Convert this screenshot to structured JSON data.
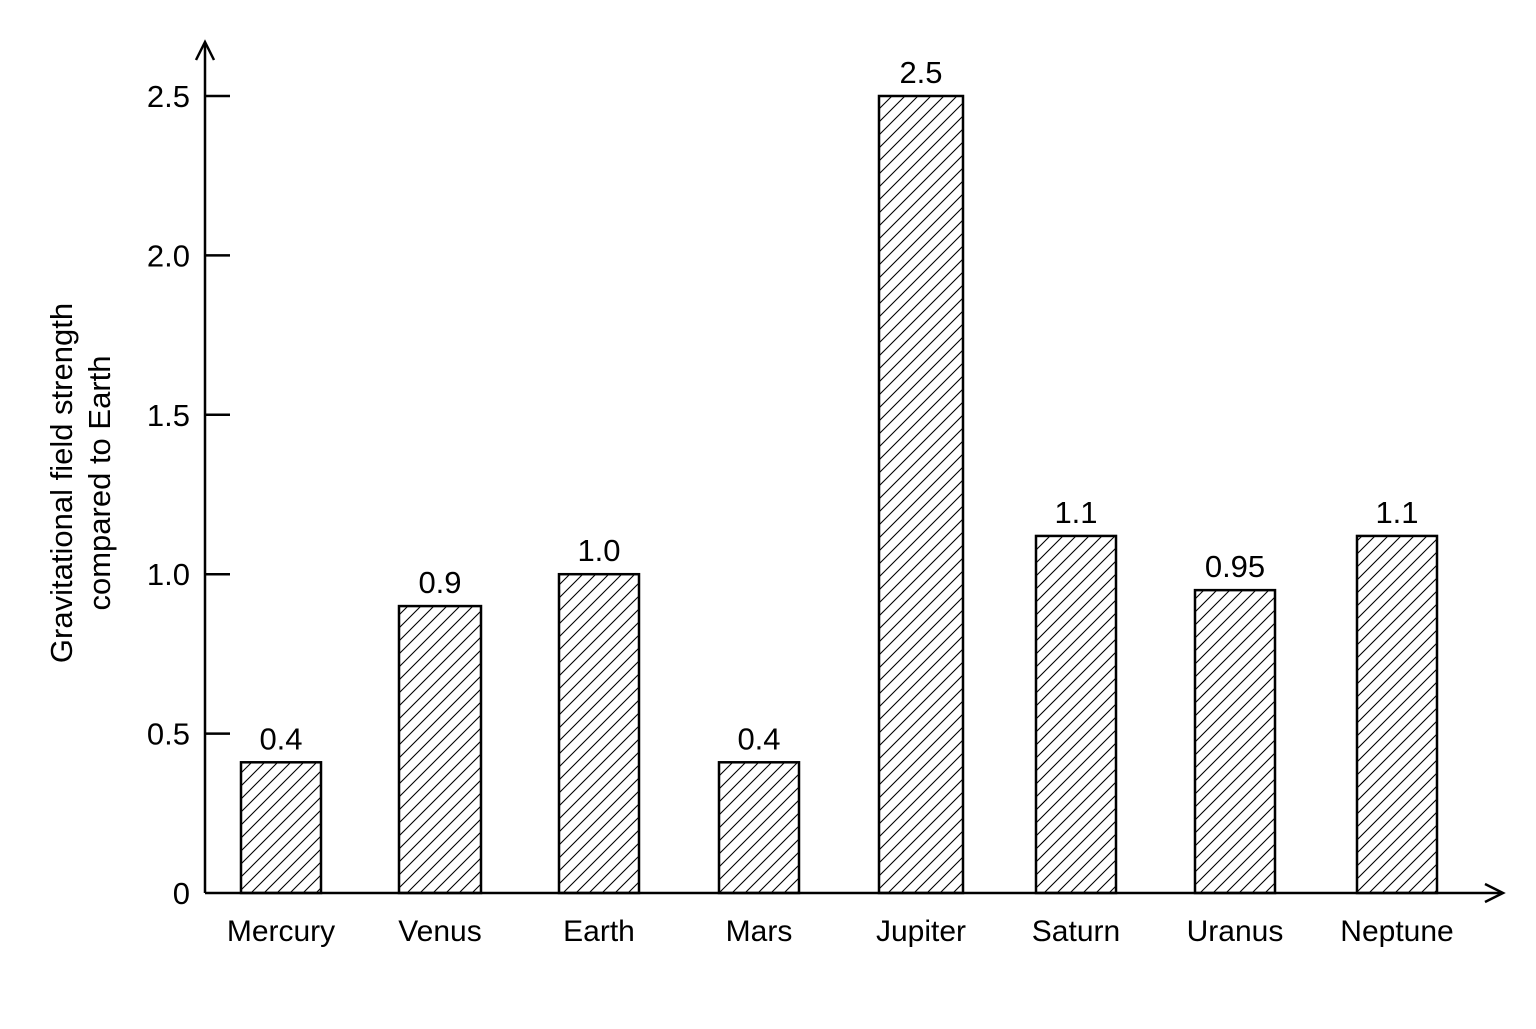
{
  "chart_data": {
    "type": "bar",
    "title": "",
    "ylabel_lines": [
      "Gravitational field strength",
      "compared to Earth"
    ],
    "xlabel": "",
    "categories": [
      "Mercury",
      "Venus",
      "Earth",
      "Mars",
      "Jupiter",
      "Saturn",
      "Uranus",
      "Neptune"
    ],
    "values": [
      0.41,
      0.9,
      1.0,
      0.41,
      2.5,
      1.12,
      0.95,
      1.12
    ],
    "data_labels": [
      "0.4",
      "0.9",
      "1.0",
      "0.4",
      "2.5",
      "1.1",
      "0.95",
      "1.1"
    ],
    "yticks": [
      0,
      0.5,
      1.0,
      1.5,
      2.0,
      2.5
    ],
    "ytick_labels": [
      "0",
      "0.5",
      "1.0",
      "1.5",
      "2.0",
      "2.5"
    ],
    "ylim": [
      0,
      2.65
    ],
    "grid": false,
    "legend": "none",
    "bar_fill": "diagonal-hatch",
    "colors": {
      "stroke": "#000000",
      "background": "#ffffff"
    }
  }
}
